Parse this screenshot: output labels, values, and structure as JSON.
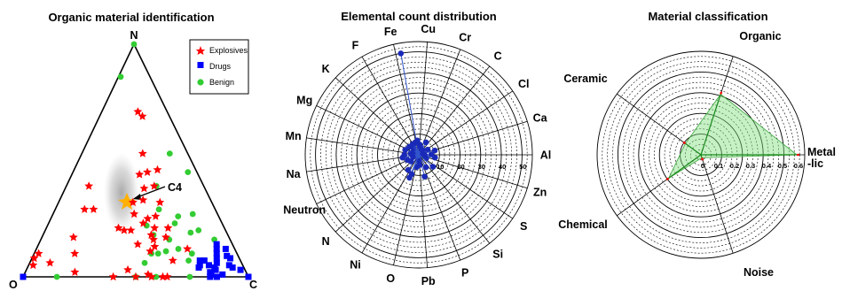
{
  "chart_data": [
    {
      "type": "scatter",
      "title": "Organic material identification",
      "vertices": [
        "O",
        "N",
        "C"
      ],
      "annotation": "C4",
      "legend": {
        "position": "top-right"
      },
      "series": [
        {
          "name": "Explosives",
          "color": "#ff0000",
          "marker": "star",
          "points": [
            [
              0.12,
              0.69,
              0.19
            ],
            [
              0.13,
              0.71,
              0.16
            ],
            [
              0.17,
              0.46,
              0.37
            ],
            [
              0.2,
              0.53,
              0.27
            ],
            [
              0.22,
              0.45,
              0.33
            ],
            [
              0.26,
              0.44,
              0.3
            ],
            [
              0.27,
              0.38,
              0.35
            ],
            [
              0.23,
              0.32,
              0.45
            ],
            [
              0.3,
              0.33,
              0.37
            ],
            [
              0.22,
              0.39,
              0.39
            ],
            [
              0.35,
              0.32,
              0.33
            ],
            [
              0.37,
              0.27,
              0.36
            ],
            [
              0.35,
              0.23,
              0.42
            ],
            [
              0.32,
              0.25,
              0.43
            ],
            [
              0.28,
              0.26,
              0.46
            ],
            [
              0.31,
              0.21,
              0.48
            ],
            [
              0.25,
              0.21,
              0.54
            ],
            [
              0.34,
              0.18,
              0.48
            ],
            [
              0.34,
              0.16,
              0.5
            ],
            [
              0.28,
              0.17,
              0.55
            ],
            [
              0.35,
              0.13,
              0.52
            ],
            [
              0.42,
              0.14,
              0.44
            ],
            [
              0.47,
              0.21,
              0.32
            ],
            [
              0.45,
              0.2,
              0.35
            ],
            [
              0.42,
              0.2,
              0.38
            ],
            [
              0.38,
              0.11,
              0.51
            ],
            [
              0.21,
              0.12,
              0.67
            ],
            [
              0.51,
              0.39,
              0.1
            ],
            [
              0.54,
              0.29,
              0.17
            ],
            [
              0.58,
              0.29,
              0.13
            ],
            [
              0.69,
              0.17,
              0.14
            ],
            [
              0.72,
              0.1,
              0.18
            ],
            [
              0.85,
              0.06,
              0.09
            ],
            [
              0.88,
              0.1,
              0.02
            ],
            [
              0.91,
              0.08,
              0.01
            ],
            [
              0.93,
              0.05,
              0.02
            ],
            [
              0.6,
              0.0,
              0.4
            ],
            [
              0.5,
              0.0,
              0.5
            ],
            [
              0.43,
              0.0,
              0.57
            ],
            [
              0.38,
              0.0,
              0.62
            ],
            [
              0.36,
              0.0,
              0.64
            ],
            [
              0.44,
              0.01,
              0.55
            ],
            [
              0.52,
              0.03,
              0.45
            ],
            [
              0.76,
              0.02,
              0.22
            ],
            [
              0.3,
              0.07,
              0.63
            ]
          ]
        },
        {
          "name": "Drugs",
          "color": "#0000ff",
          "marker": "square",
          "points": [
            [
              0.17,
              0.0,
              0.83
            ],
            [
              0.16,
              0.02,
              0.82
            ],
            [
              0.14,
              0.0,
              0.86
            ],
            [
              0.19,
              0.05,
              0.76
            ],
            [
              0.18,
              0.07,
              0.75
            ],
            [
              0.16,
              0.07,
              0.77
            ],
            [
              0.2,
              0.04,
              0.76
            ],
            [
              0.13,
              0.04,
              0.83
            ],
            [
              0.16,
              0.01,
              0.83
            ],
            [
              0.15,
              0.05,
              0.8
            ],
            [
              0.11,
              0.01,
              0.88
            ],
            [
              0.13,
              0.03,
              0.84
            ],
            [
              0.11,
              0.06,
              0.83
            ],
            [
              0.1,
              0.08,
              0.82
            ],
            [
              0.09,
              0.1,
              0.81
            ],
            [
              0.08,
              0.12,
              0.8
            ],
            [
              0.07,
              0.14,
              0.79
            ],
            [
              0.05,
              0.09,
              0.86
            ],
            [
              0.04,
              0.12,
              0.84
            ],
            [
              0.04,
              0.08,
              0.88
            ],
            [
              0.05,
              0.04,
              0.91
            ],
            [
              0.06,
              0.05,
              0.89
            ],
            [
              0.02,
              0.03,
              0.95
            ],
            [
              1.0,
              0.0,
              0.0
            ],
            [
              0.0,
              0.0,
              1.0
            ]
          ]
        },
        {
          "name": "Benign",
          "color": "#33cc33",
          "marker": "circle",
          "points": [
            [
              0.0,
              1.0,
              0.0
            ],
            [
              0.13,
              0.86,
              0.01
            ],
            [
              0.08,
              0.53,
              0.39
            ],
            [
              0.04,
              0.45,
              0.51
            ],
            [
              0.21,
              0.39,
              0.4
            ],
            [
              0.34,
              0.22,
              0.44
            ],
            [
              0.25,
              0.29,
              0.46
            ],
            [
              0.11,
              0.27,
              0.62
            ],
            [
              0.18,
              0.26,
              0.56
            ],
            [
              0.21,
              0.23,
              0.56
            ],
            [
              0.33,
              0.18,
              0.49
            ],
            [
              0.35,
              0.1,
              0.55
            ],
            [
              0.23,
              0.07,
              0.7
            ],
            [
              0.2,
              0.1,
              0.7
            ],
            [
              0.25,
              0.12,
              0.63
            ],
            [
              0.31,
              0.11,
              0.58
            ],
            [
              0.38,
              0.1,
              0.52
            ],
            [
              0.12,
              0.2,
              0.68
            ],
            [
              0.16,
              0.19,
              0.65
            ],
            [
              0.07,
              0.16,
              0.77
            ],
            [
              0.85,
              0.0,
              0.15
            ],
            [
              0.5,
              0.0,
              0.5
            ],
            [
              0.41,
              0.0,
              0.59
            ],
            [
              0.26,
              0.0,
              0.74
            ],
            [
              0.14,
              0.0,
              0.86
            ],
            [
              0.0,
              0.0,
              1.0
            ],
            [
              0.27,
              0.16,
              0.57
            ],
            [
              0.43,
              0.06,
              0.51
            ]
          ]
        }
      ]
    },
    {
      "type": "polar-scatter",
      "title": "Elemental count distribution",
      "axes": [
        "Al",
        "Ca",
        "Cl",
        "C",
        "Cr",
        "Cu",
        "Fe",
        "F",
        "K",
        "Mg",
        "Mn",
        "Na",
        "Neutron",
        "N",
        "Ni",
        "O",
        "Pb",
        "P",
        "Si",
        "S",
        "Zn"
      ],
      "radial_ticks": [
        "10",
        "20",
        "30",
        "40",
        "50"
      ],
      "rlim": [
        0,
        55
      ],
      "grid": true,
      "points": [
        {
          "angle": 100,
          "r": 50
        },
        {
          "angle": 96,
          "r": 7
        },
        {
          "angle": 110,
          "r": 6
        },
        {
          "angle": 85,
          "r": 5
        },
        {
          "angle": 80,
          "r": 4
        },
        {
          "angle": 60,
          "r": 7
        },
        {
          "angle": 45,
          "r": 3
        },
        {
          "angle": 30,
          "r": 5
        },
        {
          "angle": 15,
          "r": 8
        },
        {
          "angle": 0,
          "r": 6
        },
        {
          "angle": -10,
          "r": 8
        },
        {
          "angle": -25,
          "r": 4
        },
        {
          "angle": -40,
          "r": 9
        },
        {
          "angle": -60,
          "r": 7
        },
        {
          "angle": -75,
          "r": 11
        },
        {
          "angle": -85,
          "r": 5
        },
        {
          "angle": -100,
          "r": 6
        },
        {
          "angle": -112,
          "r": 12
        },
        {
          "angle": -125,
          "r": 9
        },
        {
          "angle": -140,
          "r": 5
        },
        {
          "angle": -155,
          "r": 6
        },
        {
          "angle": -170,
          "r": 8
        },
        {
          "angle": 180,
          "r": 7
        },
        {
          "angle": 170,
          "r": 4
        },
        {
          "angle": 160,
          "r": 7
        },
        {
          "angle": 150,
          "r": 3
        },
        {
          "angle": 140,
          "r": 6
        },
        {
          "angle": 130,
          "r": 4
        },
        {
          "angle": 120,
          "r": 6
        },
        {
          "angle": -5,
          "r": 3
        },
        {
          "angle": -160,
          "r": 3
        },
        {
          "angle": 20,
          "r": 2
        },
        {
          "angle": -90,
          "r": 3
        },
        {
          "angle": -110,
          "r": 10
        },
        {
          "angle": 65,
          "r": 3
        }
      ]
    },
    {
      "type": "radar",
      "title": "Material classification",
      "axes": [
        "Metal-lic",
        "Organic",
        "Ceramic",
        "Chemical",
        "Noise"
      ],
      "axis_label_lines": [
        [
          "Metal",
          "-lic"
        ],
        [
          "Organic"
        ],
        [
          "Ceramic"
        ],
        [
          "Chemical"
        ],
        [
          "Noise"
        ]
      ],
      "radial_ticks": [
        "0",
        "0.1",
        "0.2",
        "0.3",
        "0.4",
        "0.5",
        "0.6"
      ],
      "rlim": [
        0,
        0.65
      ],
      "grid": true,
      "values": [
        0.6,
        0.4,
        0.12,
        0.25,
        0.02
      ]
    }
  ]
}
